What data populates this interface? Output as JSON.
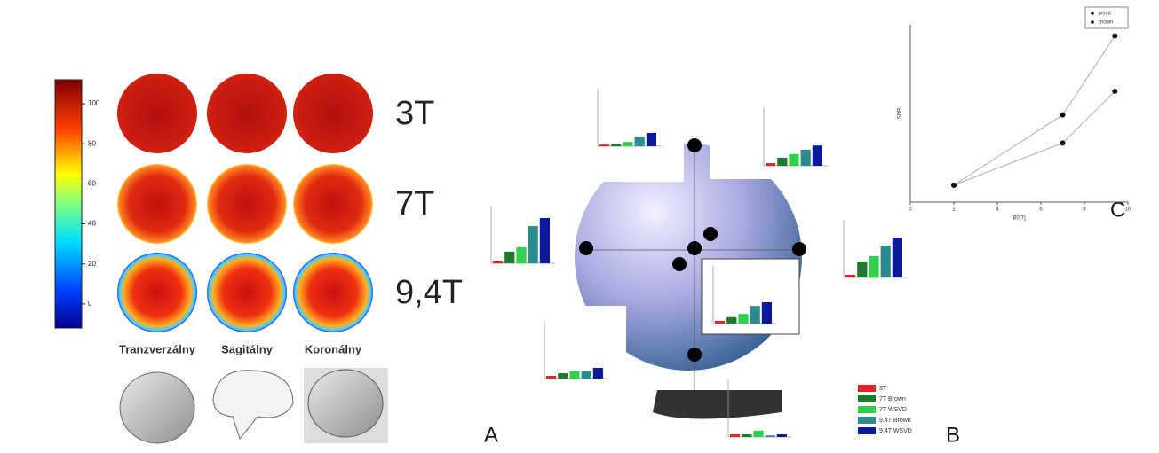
{
  "colorbar": {
    "ylim": [
      -12,
      112
    ],
    "ticks": [
      0,
      20,
      40,
      60,
      80,
      100
    ]
  },
  "field_strengths": [
    "3T",
    "7T",
    "9,4T"
  ],
  "views": [
    "Tranzverzálny",
    "Sagitálny",
    "Koronálny"
  ],
  "panels": [
    "A",
    "B",
    "C"
  ],
  "insets": {
    "ylim": [
      0,
      100
    ],
    "series_names": [
      "3T",
      "7T Brown",
      "7T WSVD",
      "9,4T Brown",
      "9,4T WSVD"
    ],
    "series_colors": [
      "#e02424",
      "#1f7a2c",
      "#2ed14a",
      "#2a8c8c",
      "#0b1a9c"
    ],
    "charts": [
      {
        "values": [
          3,
          5,
          8,
          18,
          25
        ]
      },
      {
        "values": [
          5,
          15,
          22,
          30,
          38
        ]
      },
      {
        "values": [
          5,
          22,
          30,
          70,
          85
        ]
      },
      {
        "values": [
          5,
          30,
          40,
          60,
          75
        ]
      },
      {
        "values": [
          5,
          12,
          18,
          33,
          40
        ]
      },
      {
        "values": [
          5,
          10,
          14,
          14,
          20
        ]
      },
      {
        "values": [
          5,
          5,
          12,
          3,
          5
        ]
      }
    ]
  },
  "plot": {
    "xlim": [
      0,
      10
    ],
    "xticks": [
      0,
      2,
      4,
      6,
      8,
      10
    ],
    "ylim": [
      18,
      42
    ],
    "xlabel": "B0[T]",
    "ylabel": "SNR",
    "series": [
      {
        "name": "wsvd",
        "x": [
          2,
          7,
          9.4
        ],
        "values": [
          20.3,
          29.8,
          40.5
        ]
      },
      {
        "name": "brown",
        "x": [
          2,
          7,
          9.4
        ],
        "values": [
          20.3,
          26,
          33
        ]
      }
    ]
  }
}
